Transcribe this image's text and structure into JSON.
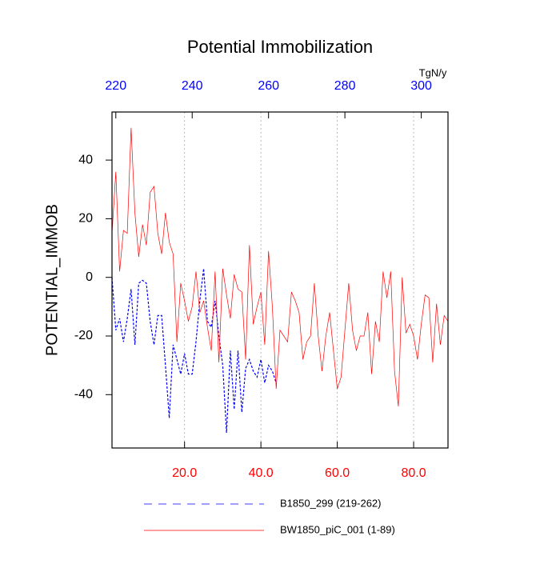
{
  "chart_data": {
    "type": "line",
    "title": "Potential Immobilization",
    "y_label": "POTENTIAL_IMMOB",
    "x2_label": "TgN/y",
    "xlim": [
      1,
      89
    ],
    "xticks": [
      {
        "value": 20,
        "label": "20.0"
      },
      {
        "value": 40,
        "label": "40.0"
      },
      {
        "value": 60,
        "label": "60.0"
      },
      {
        "value": 80,
        "label": "80.0"
      }
    ],
    "xtick_color": "#ff0000",
    "x2lim": [
      219,
      307
    ],
    "x2ticks": [
      220,
      240,
      260,
      280,
      300
    ],
    "x2tick_color": "#0000ff",
    "ylim": [
      -58.2,
      56.4
    ],
    "yticks": [
      40,
      20,
      0,
      -20,
      -40
    ],
    "grid": "x",
    "series": [
      {
        "name": "B1850_299 (219-262)",
        "color": "#0000ff",
        "dashed": true,
        "axis": "x2",
        "x": [
          219,
          220,
          221,
          222,
          223,
          224,
          225,
          226,
          227,
          228,
          229,
          230,
          231,
          232,
          233,
          234,
          235,
          236,
          237,
          238,
          239,
          240,
          241,
          242,
          243,
          244,
          245,
          246,
          247,
          248,
          249,
          250,
          251,
          252,
          253,
          254,
          255,
          256,
          257,
          258,
          259,
          260,
          261,
          262
        ],
        "values": [
          0,
          -18,
          -14,
          -22,
          -14,
          -4,
          -23,
          -2,
          -1,
          -2,
          -15,
          -23,
          -13,
          -13,
          -30,
          -48,
          -23,
          -28,
          -33,
          -26,
          -33,
          -33,
          -22,
          -8,
          3,
          -15,
          -17,
          -8,
          -20,
          -30,
          -53,
          -25,
          -45,
          -25,
          -46,
          -31,
          -28,
          -32,
          -34,
          -28,
          -36,
          -30,
          -32,
          -36
        ]
      },
      {
        "name": "BW1850_piC_001 (1-89)",
        "color": "#ff0000",
        "dashed": false,
        "x": [
          1,
          2,
          3,
          4,
          5,
          6,
          7,
          8,
          9,
          10,
          11,
          12,
          13,
          14,
          15,
          16,
          17,
          18,
          19,
          20,
          21,
          22,
          23,
          24,
          25,
          26,
          27,
          28,
          29,
          30,
          31,
          32,
          33,
          34,
          35,
          36,
          37,
          38,
          39,
          40,
          41,
          42,
          43,
          44,
          45,
          46,
          47,
          48,
          49,
          50,
          51,
          52,
          53,
          54,
          55,
          56,
          57,
          58,
          59,
          60,
          61,
          62,
          63,
          64,
          65,
          66,
          67,
          68,
          69,
          70,
          71,
          72,
          73,
          74,
          75,
          76,
          77,
          78,
          79,
          80,
          81,
          82,
          83,
          84,
          85,
          86,
          87,
          88,
          89
        ],
        "values": [
          15,
          36,
          2,
          16,
          15,
          51,
          22,
          7,
          18,
          11,
          29,
          31,
          15,
          8,
          22,
          12,
          8,
          -22,
          -2,
          -8,
          -15,
          -10,
          2,
          -12,
          -8,
          -17,
          -25,
          2,
          -29,
          3,
          -6,
          -14,
          1,
          -4,
          -5,
          -28,
          11,
          -16,
          -10,
          -5,
          -23,
          9,
          -10,
          -38,
          -18,
          -20,
          -22,
          -5,
          -8,
          -12,
          -28,
          -22,
          -20,
          -2,
          -20,
          -32,
          -20,
          -12,
          -25,
          -38,
          -34,
          -18,
          -2,
          -18,
          -25,
          -20,
          -20,
          -12,
          -33,
          -15,
          -22,
          2,
          -7,
          2,
          -32,
          -44,
          0,
          -19,
          -16,
          -20,
          -28,
          -16,
          -6,
          -7,
          -29,
          -9,
          -23,
          -13,
          -15
        ]
      }
    ]
  }
}
